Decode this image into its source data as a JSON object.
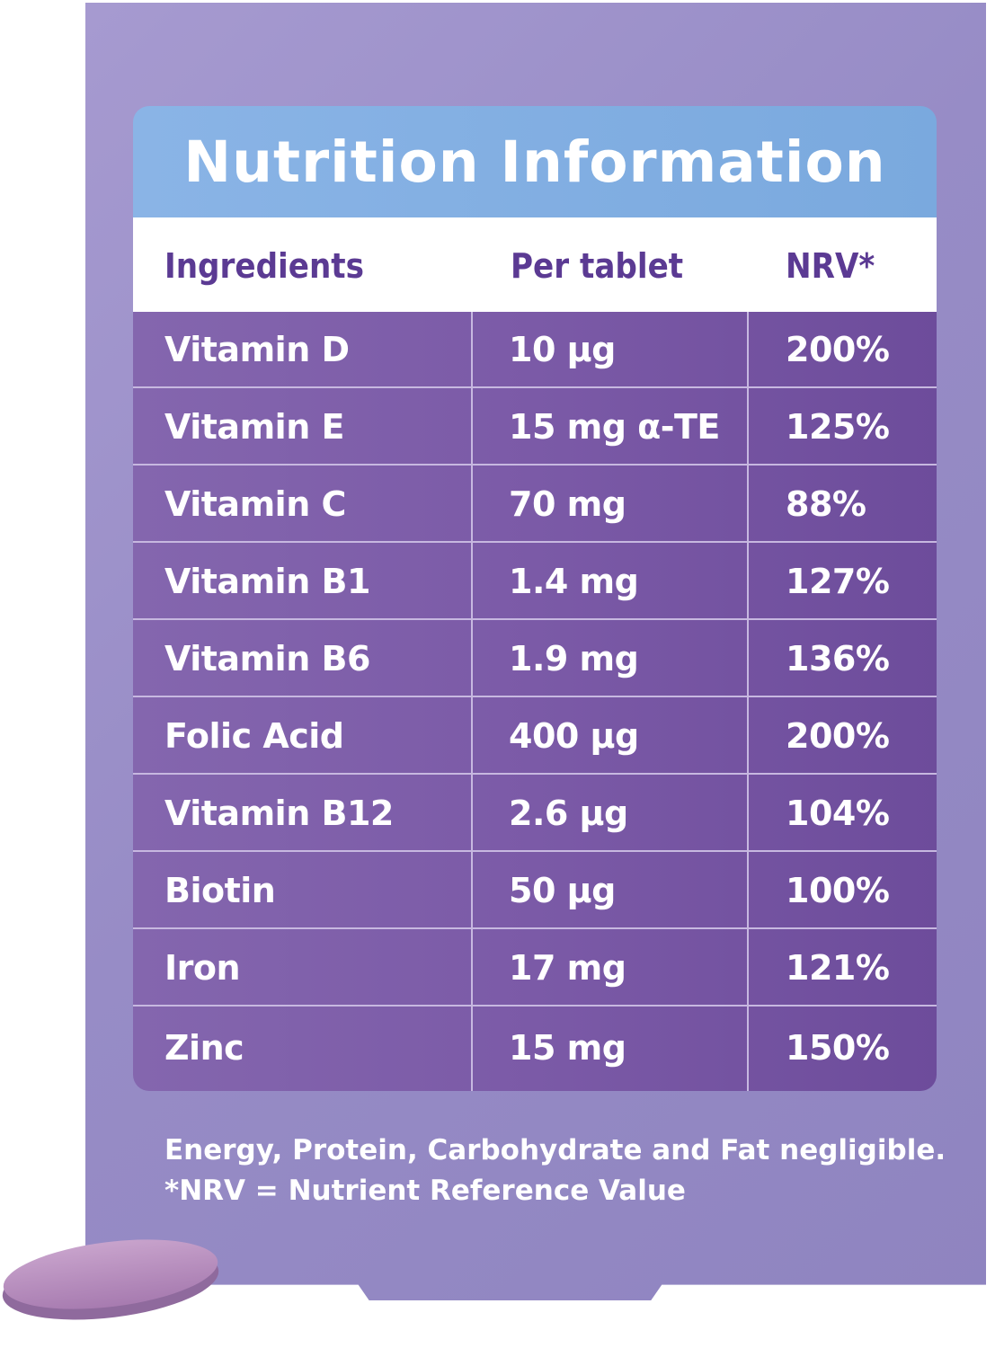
{
  "title": "Nutrition Information",
  "columns": [
    "Ingredients",
    "Per tablet",
    "NRV*"
  ],
  "rows": [
    {
      "ingredient": "Vitamin D",
      "per_tablet": "10 µg",
      "nrv": "200%"
    },
    {
      "ingredient": "Vitamin E",
      "per_tablet": "15 mg α-TE",
      "nrv": "125%"
    },
    {
      "ingredient": "Vitamin C",
      "per_tablet": "70 mg",
      "nrv": "88%"
    },
    {
      "ingredient": "Vitamin B1",
      "per_tablet": "1.4 mg",
      "nrv": "127%"
    },
    {
      "ingredient": "Vitamin B6",
      "per_tablet": "1.9 mg",
      "nrv": "136%"
    },
    {
      "ingredient": "Folic Acid",
      "per_tablet": "400 µg",
      "nrv": "200%"
    },
    {
      "ingredient": "Vitamin B12",
      "per_tablet": "2.6 µg",
      "nrv": "104%"
    },
    {
      "ingredient": "Biotin",
      "per_tablet": "50 µg",
      "nrv": "100%"
    },
    {
      "ingredient": "Iron",
      "per_tablet": "17 mg",
      "nrv": "121%"
    },
    {
      "ingredient": "Zinc",
      "per_tablet": "15 mg",
      "nrv": "150%"
    }
  ],
  "footer": {
    "line1": "Energy, Protein, Carbohydrate and Fat negligible.",
    "line2": "*NRV = Nutrient Reference Value"
  },
  "colors": {
    "card": "#978cc6",
    "header": "#7aa9de",
    "rows": "#7b5aa7",
    "column_header_text": "#5b3a93",
    "tablet": "#b48ab8"
  }
}
